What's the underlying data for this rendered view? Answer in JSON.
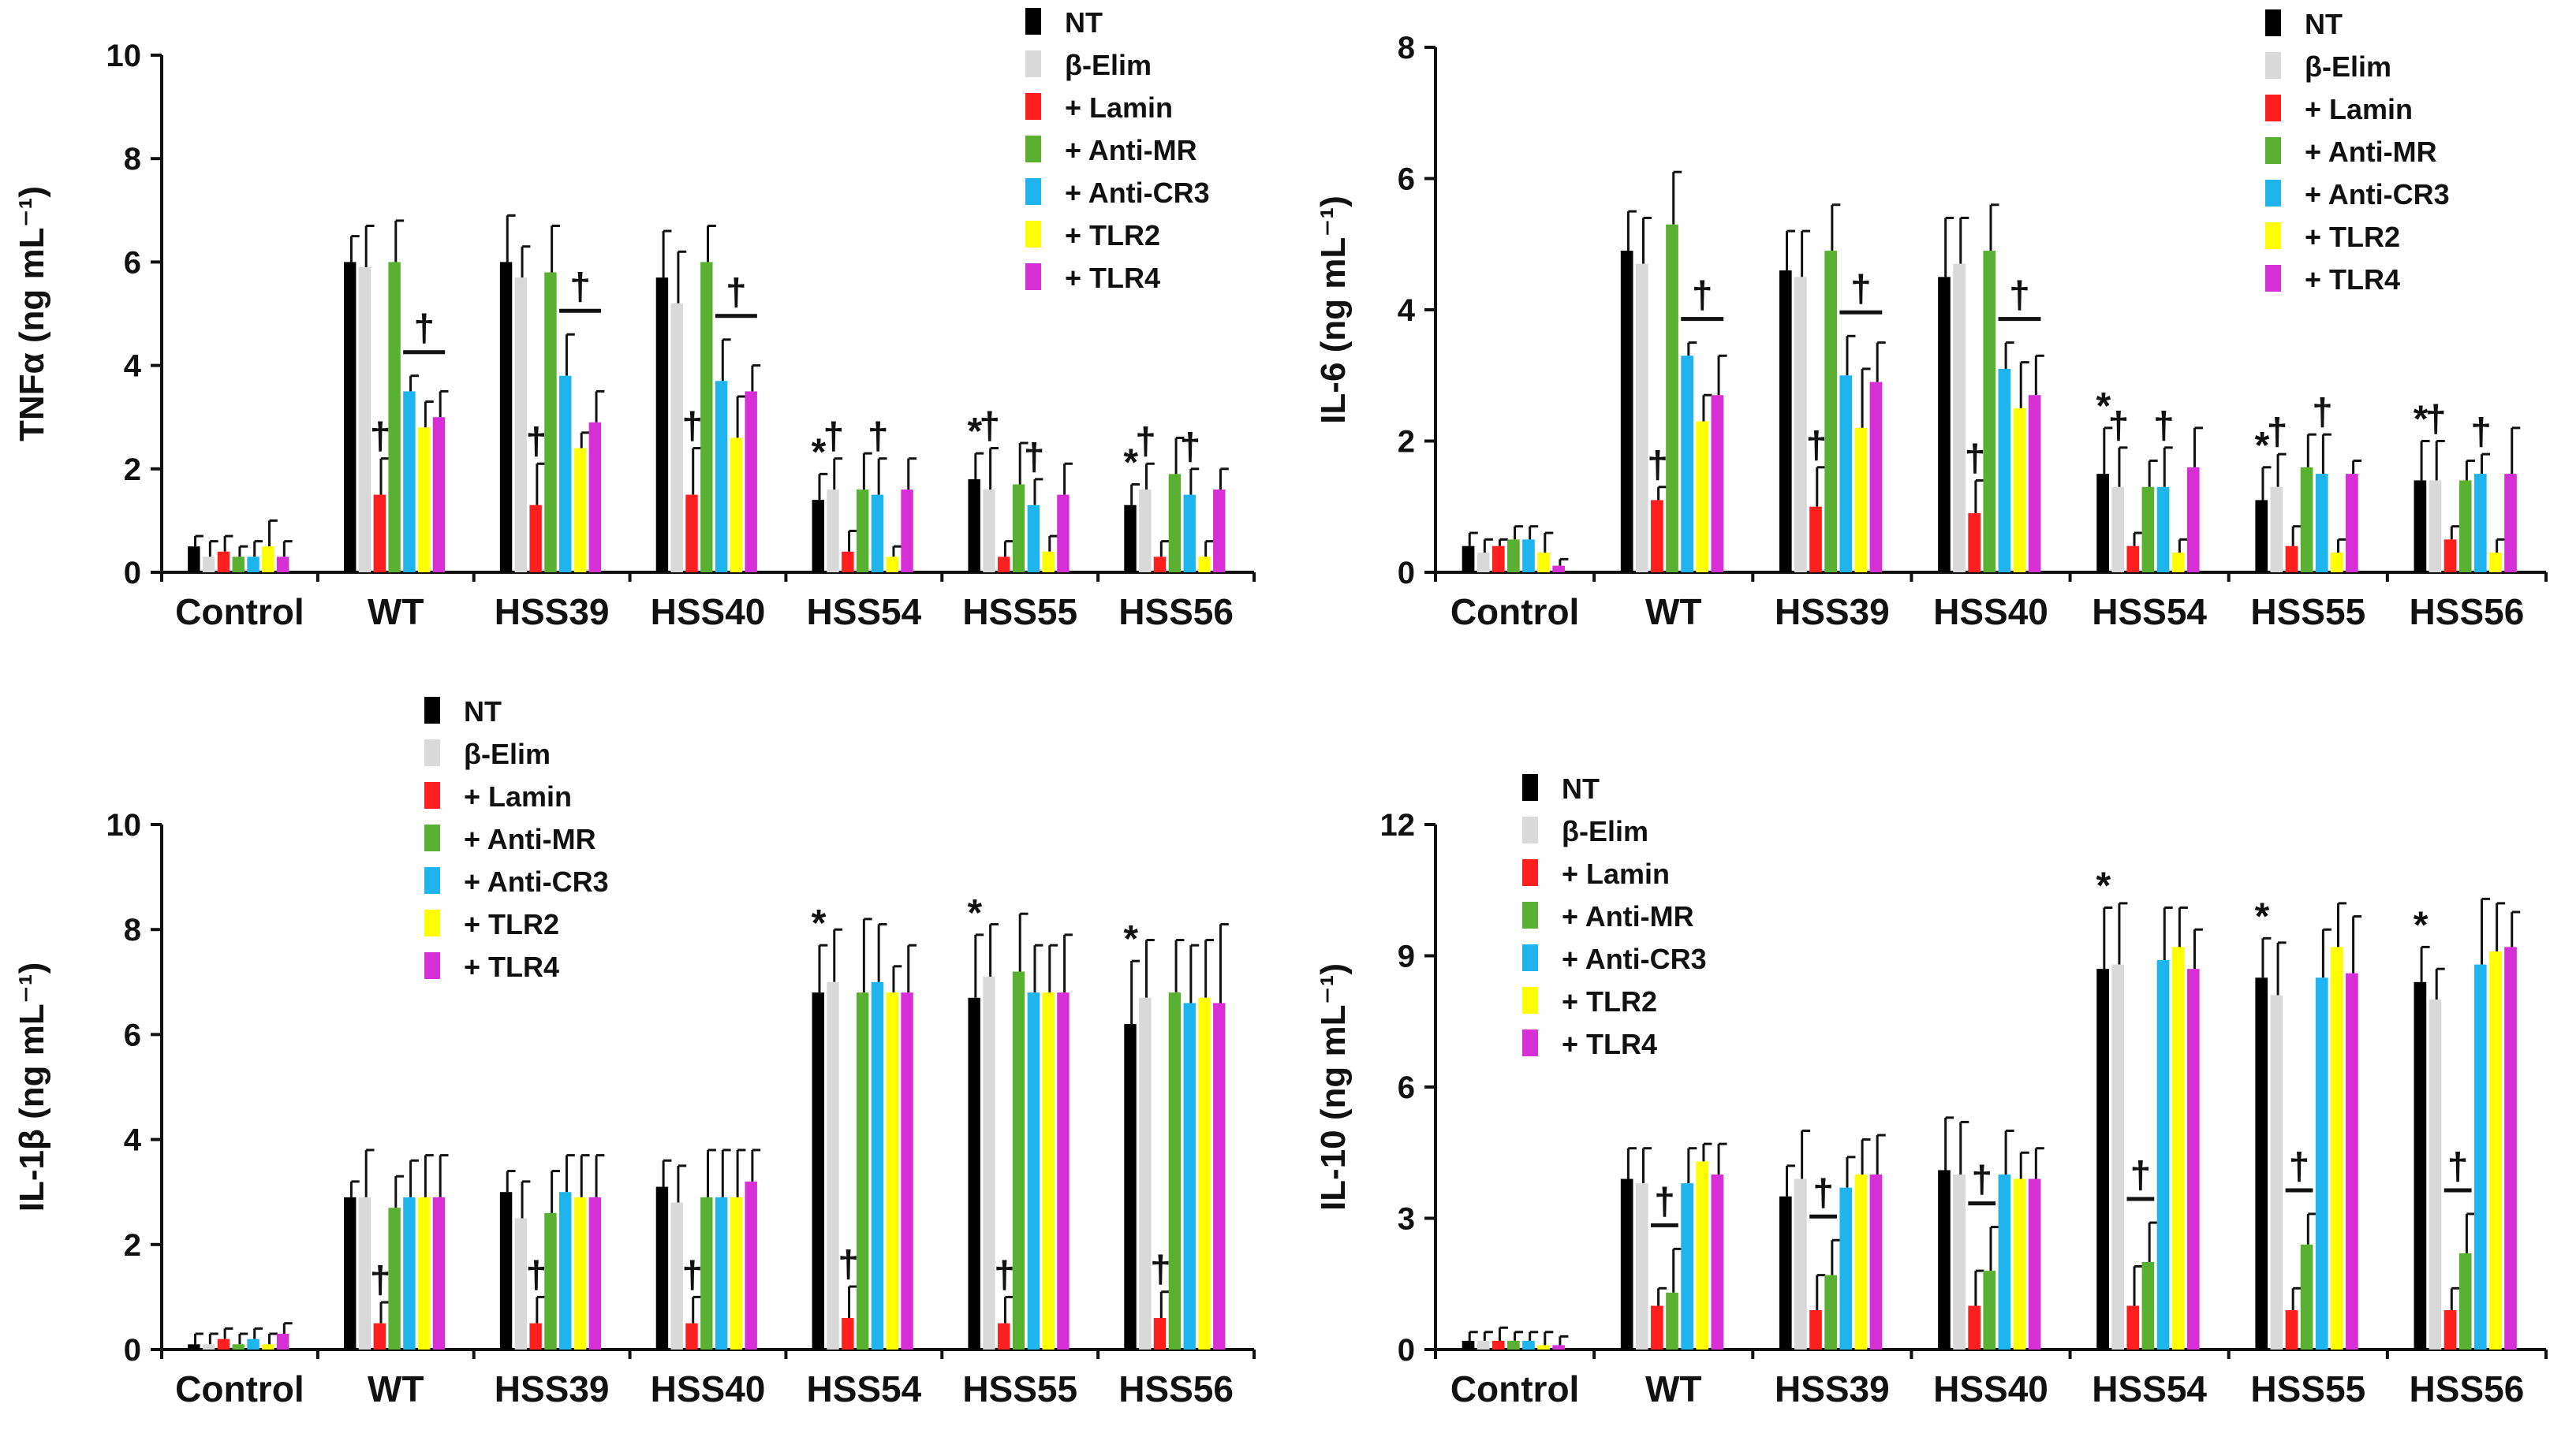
{
  "series_styles": [
    {
      "color": "#000000"
    },
    {
      "color": "#d9d9d9"
    },
    {
      "color": "#ff1f1f"
    },
    {
      "color": "#5ab031"
    },
    {
      "color": "#1eb4ee"
    },
    {
      "color": "#ffff00"
    },
    {
      "color": "#d52fd5"
    }
  ],
  "chart_data": [
    {
      "type": "bar",
      "panel": "top-left",
      "ylabel": "TNFα (ng mL⁻¹)",
      "ylim": [
        0,
        10
      ],
      "yticks": [
        0,
        2,
        4,
        6,
        8,
        10
      ],
      "categories": [
        "Control",
        "WT",
        "HSS39",
        "HSS40",
        "HSS54",
        "HSS55",
        "HSS56"
      ],
      "legend_position": "top-right",
      "series": [
        {
          "name": "NT",
          "values": [
            0.5,
            6.0,
            6.0,
            5.7,
            1.4,
            1.8,
            1.3
          ],
          "errors": [
            0.2,
            0.5,
            0.9,
            0.9,
            0.5,
            0.5,
            0.4
          ]
        },
        {
          "name": "β-Elim",
          "values": [
            0.3,
            5.9,
            5.7,
            5.2,
            1.6,
            1.6,
            1.6
          ],
          "errors": [
            0.3,
            0.8,
            0.6,
            1.0,
            0.6,
            0.8,
            0.5
          ]
        },
        {
          "name": "+ Lamin",
          "values": [
            0.4,
            1.5,
            1.3,
            1.5,
            0.4,
            0.3,
            0.3
          ],
          "errors": [
            0.3,
            0.7,
            0.8,
            0.9,
            0.4,
            0.3,
            0.3
          ]
        },
        {
          "name": "+ Anti-MR",
          "values": [
            0.3,
            6.0,
            5.8,
            6.0,
            1.6,
            1.7,
            1.9
          ],
          "errors": [
            0.2,
            0.8,
            0.9,
            0.7,
            0.7,
            0.8,
            0.7
          ]
        },
        {
          "name": "+ Anti-CR3",
          "values": [
            0.3,
            3.5,
            3.8,
            3.7,
            1.5,
            1.3,
            1.5
          ],
          "errors": [
            0.3,
            0.3,
            0.8,
            0.8,
            0.7,
            0.5,
            0.5
          ]
        },
        {
          "name": "+ TLR2",
          "values": [
            0.5,
            2.8,
            2.4,
            2.6,
            0.3,
            0.4,
            0.3
          ],
          "errors": [
            0.5,
            0.5,
            0.3,
            0.8,
            0.2,
            0.3,
            0.3
          ]
        },
        {
          "name": "+ TLR4",
          "values": [
            0.3,
            3.0,
            2.9,
            3.5,
            1.6,
            1.5,
            1.6
          ],
          "errors": [
            0.3,
            0.5,
            0.6,
            0.5,
            0.6,
            0.6,
            0.4
          ]
        }
      ],
      "annotations": [
        {
          "text": "†",
          "group": 1,
          "series": 2,
          "type": "mark"
        },
        {
          "text": "†",
          "group": 2,
          "series": 2,
          "type": "mark"
        },
        {
          "text": "†",
          "group": 3,
          "series": 2,
          "type": "mark"
        },
        {
          "text": "†",
          "group": 1,
          "from_series": 4,
          "to_series": 6,
          "type": "bracket"
        },
        {
          "text": "†",
          "group": 2,
          "from_series": 4,
          "to_series": 6,
          "type": "bracket"
        },
        {
          "text": "†",
          "group": 3,
          "from_series": 4,
          "to_series": 6,
          "type": "bracket"
        },
        {
          "text": "*",
          "group": 4,
          "series": 0,
          "type": "mark"
        },
        {
          "text": "*",
          "group": 5,
          "series": 0,
          "type": "mark"
        },
        {
          "text": "*",
          "group": 6,
          "series": 0,
          "type": "mark"
        },
        {
          "text": "†",
          "group": 4,
          "series": 1,
          "type": "mark"
        },
        {
          "text": "†",
          "group": 4,
          "series": 4,
          "type": "mark"
        },
        {
          "text": "†",
          "group": 5,
          "series": 1,
          "type": "mark"
        },
        {
          "text": "†",
          "group": 5,
          "series": 4,
          "type": "mark"
        },
        {
          "text": "†",
          "group": 6,
          "series": 1,
          "type": "mark"
        },
        {
          "text": "†",
          "group": 6,
          "series": 4,
          "type": "mark"
        }
      ]
    },
    {
      "type": "bar",
      "panel": "top-right",
      "ylabel": "IL-6 (ng mL⁻¹)",
      "ylim": [
        0,
        8
      ],
      "yticks": [
        0,
        2,
        4,
        6,
        8
      ],
      "categories": [
        "Control",
        "WT",
        "HSS39",
        "HSS40",
        "HSS54",
        "HSS55",
        "HSS56"
      ],
      "legend_position": "top-right",
      "series": [
        {
          "name": "NT",
          "values": [
            0.4,
            4.9,
            4.6,
            4.5,
            1.5,
            1.1,
            1.4
          ],
          "errors": [
            0.2,
            0.6,
            0.6,
            0.9,
            0.7,
            0.5,
            0.6
          ]
        },
        {
          "name": "β-Elim",
          "values": [
            0.3,
            4.7,
            4.5,
            4.7,
            1.3,
            1.3,
            1.4
          ],
          "errors": [
            0.2,
            0.7,
            0.7,
            0.7,
            0.6,
            0.5,
            0.6
          ]
        },
        {
          "name": "+ Lamin",
          "values": [
            0.4,
            1.1,
            1.0,
            0.9,
            0.4,
            0.4,
            0.5
          ],
          "errors": [
            0.1,
            0.2,
            0.6,
            0.5,
            0.2,
            0.3,
            0.2
          ]
        },
        {
          "name": "+ Anti-MR",
          "values": [
            0.5,
            5.3,
            4.9,
            4.9,
            1.3,
            1.6,
            1.4
          ],
          "errors": [
            0.2,
            0.8,
            0.7,
            0.7,
            0.4,
            0.5,
            0.3
          ]
        },
        {
          "name": "+ Anti-CR3",
          "values": [
            0.5,
            3.3,
            3.0,
            3.1,
            1.3,
            1.5,
            1.5
          ],
          "errors": [
            0.2,
            0.2,
            0.6,
            0.4,
            0.6,
            0.6,
            0.3
          ]
        },
        {
          "name": "+ TLR2",
          "values": [
            0.3,
            2.3,
            2.2,
            2.5,
            0.3,
            0.3,
            0.3
          ],
          "errors": [
            0.3,
            0.4,
            0.9,
            0.7,
            0.2,
            0.2,
            0.2
          ]
        },
        {
          "name": "+ TLR4",
          "values": [
            0.1,
            2.7,
            2.9,
            2.7,
            1.6,
            1.5,
            1.5
          ],
          "errors": [
            0.1,
            0.6,
            0.6,
            0.6,
            0.6,
            0.2,
            0.7
          ]
        }
      ],
      "annotations": [
        {
          "text": "†",
          "group": 1,
          "series": 2,
          "type": "mark"
        },
        {
          "text": "†",
          "group": 2,
          "series": 2,
          "type": "mark"
        },
        {
          "text": "†",
          "group": 3,
          "series": 2,
          "type": "mark"
        },
        {
          "text": "†",
          "group": 1,
          "from_series": 4,
          "to_series": 6,
          "type": "bracket"
        },
        {
          "text": "†",
          "group": 2,
          "from_series": 4,
          "to_series": 6,
          "type": "bracket"
        },
        {
          "text": "†",
          "group": 3,
          "from_series": 4,
          "to_series": 6,
          "type": "bracket"
        },
        {
          "text": "*",
          "group": 4,
          "series": 0,
          "type": "mark"
        },
        {
          "text": "*",
          "group": 5,
          "series": 0,
          "type": "mark"
        },
        {
          "text": "*",
          "group": 6,
          "series": 0,
          "type": "mark"
        },
        {
          "text": "†",
          "group": 4,
          "series": 1,
          "type": "mark"
        },
        {
          "text": "†",
          "group": 4,
          "series": 4,
          "type": "mark"
        },
        {
          "text": "†",
          "group": 5,
          "series": 1,
          "type": "mark"
        },
        {
          "text": "†",
          "group": 5,
          "series": 4,
          "type": "mark"
        },
        {
          "text": "†",
          "group": 6,
          "series": 1,
          "type": "mark"
        },
        {
          "text": "†",
          "group": 6,
          "series": 4,
          "type": "mark"
        }
      ]
    },
    {
      "type": "bar",
      "panel": "bottom-left",
      "ylabel": "IL-1β (ng mL⁻¹)",
      "ylim": [
        0,
        10
      ],
      "yticks": [
        0,
        2,
        4,
        6,
        8,
        10
      ],
      "categories": [
        "Control",
        "WT",
        "HSS39",
        "HSS40",
        "HSS54",
        "HSS55",
        "HSS56"
      ],
      "legend_position": "top-left",
      "series": [
        {
          "name": "NT",
          "values": [
            0.1,
            2.9,
            3.0,
            3.1,
            6.8,
            6.7,
            6.2
          ],
          "errors": [
            0.2,
            0.3,
            0.4,
            0.5,
            0.9,
            1.2,
            1.2
          ]
        },
        {
          "name": "β-Elim",
          "values": [
            0.1,
            2.9,
            2.5,
            2.8,
            7.0,
            7.1,
            6.7
          ],
          "errors": [
            0.2,
            0.9,
            0.7,
            0.7,
            1.0,
            1.0,
            1.1
          ]
        },
        {
          "name": "+ Lamin",
          "values": [
            0.2,
            0.5,
            0.5,
            0.5,
            0.6,
            0.5,
            0.6
          ],
          "errors": [
            0.2,
            0.4,
            0.5,
            0.5,
            0.6,
            0.5,
            0.5
          ]
        },
        {
          "name": "+ Anti-MR",
          "values": [
            0.1,
            2.7,
            2.6,
            2.9,
            6.8,
            7.2,
            6.8
          ],
          "errors": [
            0.2,
            0.6,
            0.8,
            0.9,
            1.4,
            1.1,
            1.0
          ]
        },
        {
          "name": "+ Anti-CR3",
          "values": [
            0.2,
            2.9,
            3.0,
            2.9,
            7.0,
            6.8,
            6.6
          ],
          "errors": [
            0.2,
            0.7,
            0.7,
            0.9,
            1.1,
            0.9,
            1.1
          ]
        },
        {
          "name": "+ TLR2",
          "values": [
            0.1,
            2.9,
            2.9,
            2.9,
            6.8,
            6.8,
            6.7
          ],
          "errors": [
            0.2,
            0.8,
            0.8,
            0.9,
            0.5,
            0.9,
            1.1
          ]
        },
        {
          "name": "+ TLR4",
          "values": [
            0.3,
            2.9,
            2.9,
            3.2,
            6.8,
            6.8,
            6.6
          ],
          "errors": [
            0.2,
            0.8,
            0.8,
            0.6,
            0.9,
            1.1,
            1.5
          ]
        }
      ],
      "annotations": [
        {
          "text": "†",
          "group": 1,
          "series": 2,
          "type": "mark"
        },
        {
          "text": "†",
          "group": 2,
          "series": 2,
          "type": "mark"
        },
        {
          "text": "†",
          "group": 3,
          "series": 2,
          "type": "mark"
        },
        {
          "text": "†",
          "group": 4,
          "series": 2,
          "type": "mark"
        },
        {
          "text": "†",
          "group": 5,
          "series": 2,
          "type": "mark"
        },
        {
          "text": "†",
          "group": 6,
          "series": 2,
          "type": "mark"
        },
        {
          "text": "*",
          "group": 4,
          "series": 0,
          "type": "mark"
        },
        {
          "text": "*",
          "group": 5,
          "series": 0,
          "type": "mark"
        },
        {
          "text": "*",
          "group": 6,
          "series": 0,
          "type": "mark"
        }
      ]
    },
    {
      "type": "bar",
      "panel": "bottom-right",
      "ylabel": "IL-10 (ng mL⁻¹)",
      "ylim": [
        0,
        12
      ],
      "yticks": [
        0,
        3,
        6,
        9,
        12
      ],
      "categories": [
        "Control",
        "WT",
        "HSS39",
        "HSS40",
        "HSS54",
        "HSS55",
        "HSS56"
      ],
      "legend_position": "top-left",
      "series": [
        {
          "name": "NT",
          "values": [
            0.2,
            3.9,
            3.5,
            4.1,
            8.7,
            8.5,
            8.4
          ],
          "errors": [
            0.2,
            0.7,
            0.7,
            1.2,
            1.4,
            0.9,
            0.8
          ]
        },
        {
          "name": "β-Elim",
          "values": [
            0.2,
            3.8,
            3.9,
            4.0,
            8.8,
            8.1,
            8.0
          ],
          "errors": [
            0.2,
            0.8,
            1.1,
            1.2,
            1.4,
            1.2,
            0.7
          ]
        },
        {
          "name": "+ Lamin",
          "values": [
            0.2,
            1.0,
            0.9,
            1.0,
            1.0,
            0.9,
            0.9
          ],
          "errors": [
            0.3,
            0.4,
            0.8,
            0.8,
            0.9,
            0.5,
            0.5
          ]
        },
        {
          "name": "+ Anti-MR",
          "values": [
            0.2,
            1.3,
            1.7,
            1.8,
            2.0,
            2.4,
            2.2
          ],
          "errors": [
            0.2,
            1.0,
            0.8,
            1.0,
            0.9,
            0.7,
            0.9
          ]
        },
        {
          "name": "+ Anti-CR3",
          "values": [
            0.2,
            3.8,
            3.7,
            4.0,
            8.9,
            8.5,
            8.8
          ],
          "errors": [
            0.2,
            0.8,
            0.7,
            1.0,
            1.2,
            1.1,
            1.5
          ]
        },
        {
          "name": "+ TLR2",
          "values": [
            0.1,
            4.3,
            4.0,
            3.9,
            9.2,
            9.2,
            9.1
          ],
          "errors": [
            0.3,
            0.4,
            0.8,
            0.6,
            0.9,
            1.0,
            1.1
          ]
        },
        {
          "name": "+ TLR4",
          "values": [
            0.1,
            4.0,
            4.0,
            3.9,
            8.7,
            8.6,
            9.2
          ],
          "errors": [
            0.2,
            0.7,
            0.9,
            0.7,
            0.9,
            1.3,
            0.8
          ]
        }
      ],
      "annotations": [
        {
          "text": "†",
          "group": 1,
          "from_series": 2,
          "to_series": 3,
          "type": "bracket"
        },
        {
          "text": "†",
          "group": 2,
          "from_series": 2,
          "to_series": 3,
          "type": "bracket"
        },
        {
          "text": "†",
          "group": 3,
          "from_series": 2,
          "to_series": 3,
          "type": "bracket"
        },
        {
          "text": "†",
          "group": 4,
          "from_series": 2,
          "to_series": 3,
          "type": "bracket"
        },
        {
          "text": "†",
          "group": 5,
          "from_series": 2,
          "to_series": 3,
          "type": "bracket"
        },
        {
          "text": "†",
          "group": 6,
          "from_series": 2,
          "to_series": 3,
          "type": "bracket"
        },
        {
          "text": "*",
          "group": 4,
          "series": 0,
          "type": "mark"
        },
        {
          "text": "*",
          "group": 5,
          "series": 0,
          "type": "mark"
        },
        {
          "text": "*",
          "group": 6,
          "series": 0,
          "type": "mark"
        }
      ]
    }
  ]
}
